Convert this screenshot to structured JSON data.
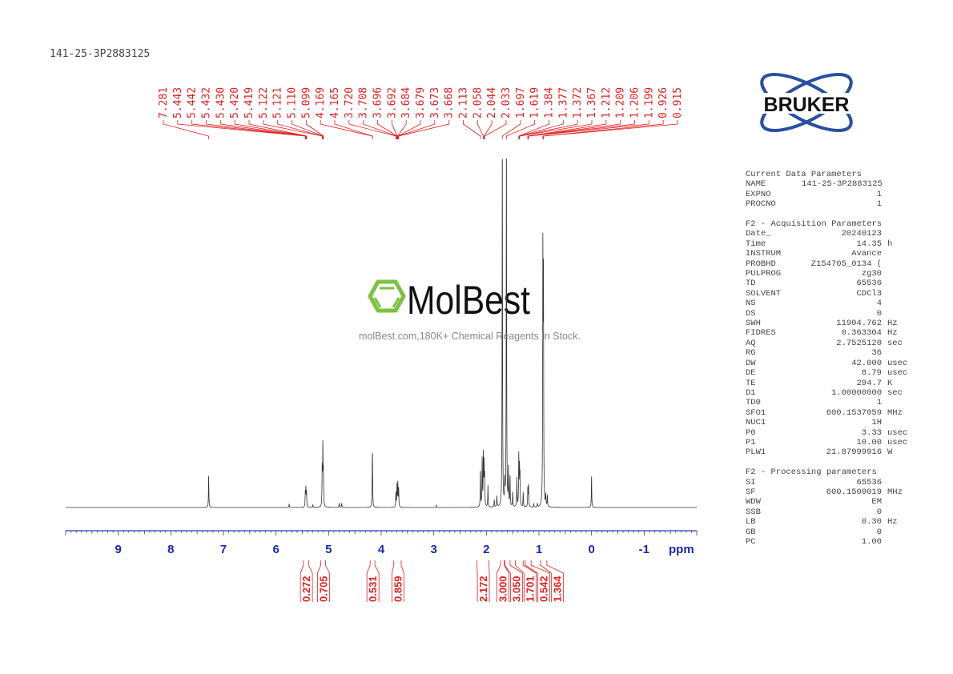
{
  "title": "141-25-3P2883125",
  "watermark": {
    "brand": "MolBest",
    "tagline": "molBest.com,180K+ Chemical Reagents In Stock.",
    "color": "#7dc242"
  },
  "logo": {
    "text": "BRUKER",
    "color": "#2a4fa0"
  },
  "params": [
    {
      "header": "Current Data Parameters",
      "rows": [
        [
          "NAME",
          "141-25-3P2883125",
          ""
        ],
        [
          "EXPNO",
          "1",
          ""
        ],
        [
          "PROCNO",
          "1",
          ""
        ]
      ]
    },
    {
      "header": "F2 - Acquisition Parameters",
      "rows": [
        [
          "Date_",
          "20240123",
          ""
        ],
        [
          "Time",
          "14.35",
          "h"
        ],
        [
          "INSTRUM",
          "Avance",
          ""
        ],
        [
          "PROBHD",
          "Z154705_0134 (",
          ""
        ],
        [
          "PULPROG",
          "zg30",
          ""
        ],
        [
          "TD",
          "65536",
          ""
        ],
        [
          "SOLVENT",
          "CDCl3",
          ""
        ],
        [
          "NS",
          "4",
          ""
        ],
        [
          "DS",
          "0",
          ""
        ],
        [
          "SWH",
          "11904.762",
          "Hz"
        ],
        [
          "FIDRES",
          "0.363304",
          "Hz"
        ],
        [
          "AQ",
          "2.7525120",
          "sec"
        ],
        [
          "RG",
          "36",
          ""
        ],
        [
          "DW",
          "42.000",
          "usec"
        ],
        [
          "DE",
          "8.79",
          "usec"
        ],
        [
          "TE",
          "294.7",
          "K"
        ],
        [
          "D1",
          "1.00000000",
          "sec"
        ],
        [
          "TD0",
          "1",
          ""
        ],
        [
          "SFO1",
          "600.1537059",
          "MHz"
        ],
        [
          "NUC1",
          "1H",
          ""
        ],
        [
          "P0",
          "3.33",
          "usec"
        ],
        [
          "P1",
          "10.00",
          "usec"
        ],
        [
          "PLW1",
          "21.87999916",
          "W"
        ]
      ]
    },
    {
      "header": "F2 - Processing parameters",
      "rows": [
        [
          "SI",
          "65536",
          ""
        ],
        [
          "SF",
          "600.1500019",
          "MHz"
        ],
        [
          "WDW",
          "EM",
          ""
        ],
        [
          "SSB",
          "0",
          ""
        ],
        [
          "LB",
          "0.30",
          "Hz"
        ],
        [
          "GB",
          "0",
          ""
        ],
        [
          "PC",
          "1.00",
          ""
        ]
      ]
    }
  ],
  "chart_data": {
    "type": "line",
    "xlabel": "ppm",
    "xlim": [
      10.0,
      -2.0
    ],
    "xticks": [
      "9",
      "8",
      "7",
      "6",
      "5",
      "4",
      "3",
      "2",
      "1",
      "0",
      "-1"
    ],
    "ylim": [
      0,
      1
    ],
    "spectrum_color": "#333333",
    "annotation_color": "#e02020",
    "peak_labels": [
      "7.281",
      "5.443",
      "5.442",
      "5.432",
      "5.430",
      "5.420",
      "5.419",
      "5.122",
      "5.121",
      "5.110",
      "5.099",
      "4.169",
      "4.165",
      "3.720",
      "3.708",
      "3.696",
      "3.692",
      "3.684",
      "3.679",
      "3.673",
      "3.668",
      "2.113",
      "2.058",
      "2.044",
      "2.033",
      "1.697",
      "1.619",
      "1.384",
      "1.377",
      "1.372",
      "1.367",
      "1.212",
      "1.209",
      "1.206",
      "1.199",
      "0.926",
      "0.915"
    ],
    "peaks": [
      [
        7.281,
        0.09
      ],
      [
        5.75,
        0.01
      ],
      [
        5.443,
        0.04
      ],
      [
        5.432,
        0.05
      ],
      [
        5.42,
        0.04
      ],
      [
        5.3,
        0.008
      ],
      [
        5.122,
        0.1
      ],
      [
        5.11,
        0.16
      ],
      [
        5.099,
        0.09
      ],
      [
        4.8,
        0.012
      ],
      [
        4.75,
        0.012
      ],
      [
        4.169,
        0.1
      ],
      [
        4.165,
        0.08
      ],
      [
        3.72,
        0.04
      ],
      [
        3.7,
        0.06
      ],
      [
        3.684,
        0.065
      ],
      [
        3.668,
        0.05
      ],
      [
        2.95,
        0.006
      ],
      [
        2.113,
        0.1
      ],
      [
        2.08,
        0.13
      ],
      [
        2.058,
        0.14
      ],
      [
        2.044,
        0.11
      ],
      [
        2.033,
        0.08
      ],
      [
        1.97,
        0.06
      ],
      [
        1.85,
        0.02
      ],
      [
        1.8,
        0.03
      ],
      [
        1.697,
        1.0
      ],
      [
        1.65,
        0.06
      ],
      [
        1.619,
        1.0
      ],
      [
        1.58,
        0.1
      ],
      [
        1.55,
        0.08
      ],
      [
        1.5,
        0.04
      ],
      [
        1.42,
        0.08
      ],
      [
        1.384,
        0.14
      ],
      [
        1.37,
        0.1
      ],
      [
        1.36,
        0.08
      ],
      [
        1.3,
        0.04
      ],
      [
        1.212,
        0.05
      ],
      [
        1.199,
        0.06
      ],
      [
        1.1,
        0.01
      ],
      [
        1.03,
        0.01
      ],
      [
        0.926,
        0.67
      ],
      [
        0.915,
        0.6
      ],
      [
        0.87,
        0.03
      ],
      [
        0.84,
        0.03
      ],
      [
        0.0,
        0.085
      ]
    ],
    "integrals": [
      {
        "label": "0.272",
        "range": [
          5.48,
          5.38
        ]
      },
      {
        "label": "0.705",
        "range": [
          5.15,
          5.06
        ]
      },
      {
        "label": "0.531",
        "range": [
          4.21,
          4.12
        ]
      },
      {
        "label": "0.859",
        "range": [
          3.76,
          3.62
        ]
      },
      {
        "label": "2.172",
        "range": [
          2.18,
          1.95
        ]
      },
      {
        "label": "3.000",
        "range": [
          1.73,
          1.66
        ]
      },
      {
        "label": "3.050",
        "range": [
          1.65,
          1.55
        ]
      },
      {
        "label": "1.701",
        "range": [
          1.45,
          1.3
        ]
      },
      {
        "label": "0.542",
        "range": [
          1.26,
          1.15
        ]
      },
      {
        "label": "1.364",
        "range": [
          0.97,
          0.85
        ]
      }
    ]
  }
}
